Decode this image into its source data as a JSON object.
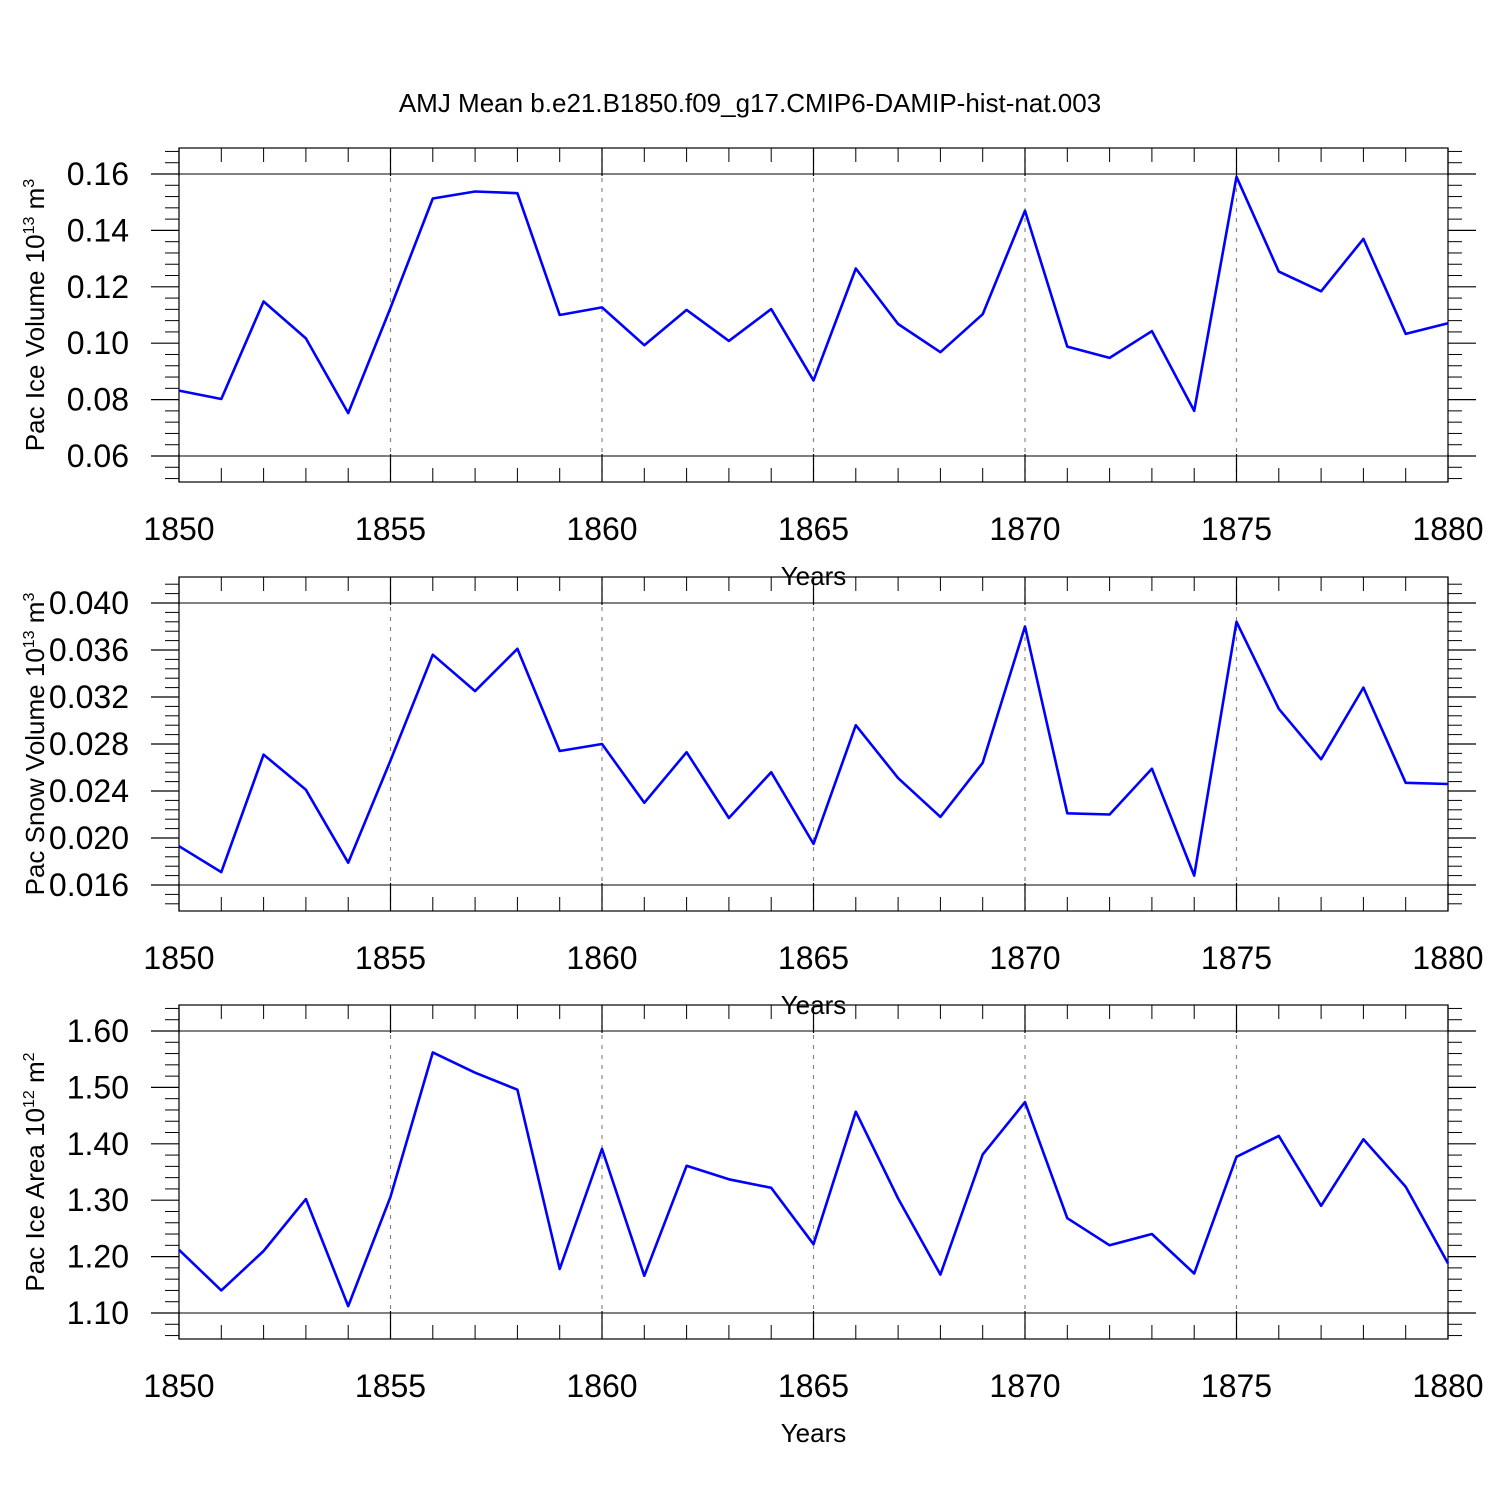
{
  "title": "AMJ Mean b.e21.B1850.f09_g17.CMIP6-DAMIP-hist-nat.003",
  "colors": {
    "series": "#0000ff",
    "axes": "#000000",
    "grid": "#888888"
  },
  "chart_data": [
    {
      "type": "line",
      "ylabel": {
        "main": "Pac Ice Volume 10",
        "exponent": "13",
        "unit": " m",
        "unit_exponent": "3"
      },
      "xlabel": "Years",
      "xlim": [
        1850,
        1880
      ],
      "ylim": [
        0.06,
        0.16
      ],
      "xticks": [
        1850,
        1855,
        1860,
        1865,
        1870,
        1875,
        1880
      ],
      "xtick_labels": [
        "1850",
        "1855",
        "1860",
        "1865",
        "1870",
        "1875",
        "1880"
      ],
      "yticks": [
        0.06,
        0.08,
        0.1,
        0.12,
        0.14,
        0.16
      ],
      "ytick_labels": [
        "0.06",
        "0.08",
        "0.10",
        "0.12",
        "0.14",
        "0.16"
      ],
      "grid": "vertical dashed at major x ticks",
      "x": [
        1850,
        1851,
        1852,
        1853,
        1854,
        1855,
        1856,
        1857,
        1858,
        1859,
        1860,
        1861,
        1862,
        1863,
        1864,
        1865,
        1866,
        1867,
        1868,
        1869,
        1870,
        1871,
        1872,
        1873,
        1874,
        1875,
        1876,
        1877,
        1878,
        1879,
        1880
      ],
      "series": [
        {
          "values": [
            0.0832,
            0.0802,
            0.1148,
            0.1017,
            0.0752,
            0.1125,
            0.1513,
            0.1538,
            0.1532,
            0.11,
            0.1127,
            0.0993,
            0.1118,
            0.1008,
            0.1121,
            0.0868,
            0.1265,
            0.1068,
            0.0968,
            0.1103,
            0.147,
            0.0988,
            0.0948,
            0.1043,
            0.076,
            0.159,
            0.1254,
            0.1184,
            0.137,
            0.1033,
            0.1071
          ]
        }
      ]
    },
    {
      "type": "line",
      "ylabel": {
        "main": "Pac Snow Volume 10",
        "exponent": "13",
        "unit": " m",
        "unit_exponent": "3"
      },
      "xlabel": "Years",
      "xlim": [
        1850,
        1880
      ],
      "ylim": [
        0.016,
        0.04
      ],
      "xticks": [
        1850,
        1855,
        1860,
        1865,
        1870,
        1875,
        1880
      ],
      "xtick_labels": [
        "1850",
        "1855",
        "1860",
        "1865",
        "1870",
        "1875",
        "1880"
      ],
      "yticks": [
        0.016,
        0.02,
        0.024,
        0.028,
        0.032,
        0.036,
        0.04
      ],
      "ytick_labels": [
        "0.016",
        "0.020",
        "0.024",
        "0.028",
        "0.032",
        "0.036",
        "0.040"
      ],
      "grid": "vertical dashed at major x ticks",
      "x": [
        1850,
        1851,
        1852,
        1853,
        1854,
        1855,
        1856,
        1857,
        1858,
        1859,
        1860,
        1861,
        1862,
        1863,
        1864,
        1865,
        1866,
        1867,
        1868,
        1869,
        1870,
        1871,
        1872,
        1873,
        1874,
        1875,
        1876,
        1877,
        1878,
        1879,
        1880
      ],
      "series": [
        {
          "values": [
            0.0193,
            0.0171,
            0.0271,
            0.0241,
            0.0179,
            0.0266,
            0.0356,
            0.0325,
            0.0361,
            0.0274,
            0.028,
            0.023,
            0.0273,
            0.0217,
            0.0256,
            0.0195,
            0.0296,
            0.0251,
            0.0218,
            0.0264,
            0.038,
            0.0221,
            0.022,
            0.0259,
            0.0168,
            0.0384,
            0.031,
            0.0267,
            0.0328,
            0.0247,
            0.0246
          ]
        }
      ]
    },
    {
      "type": "line",
      "ylabel": {
        "main": "Pac Ice Area 10",
        "exponent": "12",
        "unit": " m",
        "unit_exponent": "2"
      },
      "xlabel": "Years",
      "xlim": [
        1850,
        1880
      ],
      "ylim": [
        1.1,
        1.6
      ],
      "xticks": [
        1850,
        1855,
        1860,
        1865,
        1870,
        1875,
        1880
      ],
      "xtick_labels": [
        "1850",
        "1855",
        "1860",
        "1865",
        "1870",
        "1875",
        "1880"
      ],
      "yticks": [
        1.1,
        1.2,
        1.3,
        1.4,
        1.5,
        1.6
      ],
      "ytick_labels": [
        "1.10",
        "1.20",
        "1.30",
        "1.40",
        "1.50",
        "1.60"
      ],
      "grid": "vertical dashed at major x ticks",
      "x": [
        1850,
        1851,
        1852,
        1853,
        1854,
        1855,
        1856,
        1857,
        1858,
        1859,
        1860,
        1861,
        1862,
        1863,
        1864,
        1865,
        1866,
        1867,
        1868,
        1869,
        1870,
        1871,
        1872,
        1873,
        1874,
        1875,
        1876,
        1877,
        1878,
        1879,
        1880
      ],
      "series": [
        {
          "values": [
            1.212,
            1.14,
            1.21,
            1.302,
            1.112,
            1.306,
            1.562,
            1.526,
            1.496,
            1.178,
            1.391,
            1.166,
            1.361,
            1.337,
            1.322,
            1.222,
            1.457,
            1.303,
            1.168,
            1.381,
            1.474,
            1.268,
            1.22,
            1.24,
            1.17,
            1.377,
            1.414,
            1.29,
            1.408,
            1.324,
            1.188
          ]
        }
      ]
    }
  ]
}
